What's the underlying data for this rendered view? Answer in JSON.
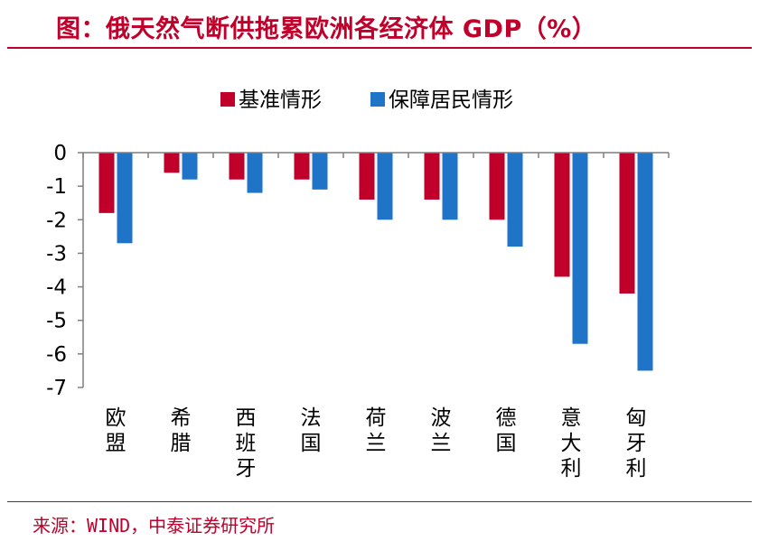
{
  "title": "图：俄天然气断供拖累欧洲各经济体 GDP（%）",
  "source": "来源：WIND，中泰证券研究所",
  "colors": {
    "base": "#c0002a",
    "protect": "#1f74c8",
    "accent": "#c0002a",
    "axis": "#7f7f7f"
  },
  "chart_data": {
    "type": "bar",
    "categories": [
      "欧盟",
      "希腊",
      "西班牙",
      "法国",
      "荷兰",
      "波兰",
      "德国",
      "意大利",
      "匈牙利"
    ],
    "series": [
      {
        "name": "基准情形",
        "values": [
          -1.8,
          -0.6,
          -0.8,
          -0.8,
          -1.4,
          -1.4,
          -2.0,
          -3.7,
          -4.2
        ]
      },
      {
        "name": "保障居民情形",
        "values": [
          -2.7,
          -0.8,
          -1.2,
          -1.1,
          -2.0,
          -2.0,
          -2.8,
          -5.7,
          -6.5
        ]
      }
    ],
    "yticks": [
      "0",
      "-1",
      "-2",
      "-3",
      "-4",
      "-5",
      "-6",
      "-7"
    ],
    "ylim": [
      -7,
      0
    ],
    "legend_position": "top-center",
    "grid": false
  }
}
